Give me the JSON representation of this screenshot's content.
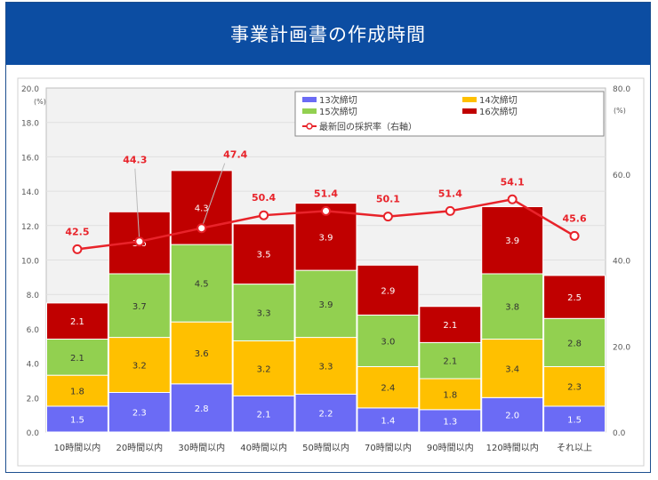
{
  "title": "事業計画書の作成時間",
  "chart_data": {
    "type": "bar",
    "stacked": true,
    "categories": [
      "10時間以内",
      "20時間以内",
      "30時間以内",
      "40時間以内",
      "50時間以内",
      "70時間以内",
      "90時間以内",
      "120時間以内",
      "それ以上"
    ],
    "series": [
      {
        "name": "13次締切",
        "color": "#6b6bf5",
        "values": [
          1.5,
          2.3,
          2.8,
          2.1,
          2.2,
          1.4,
          1.3,
          2.0,
          1.5
        ]
      },
      {
        "name": "14次締切",
        "color": "#ffc000",
        "values": [
          1.8,
          3.2,
          3.6,
          3.2,
          3.3,
          2.4,
          1.8,
          3.4,
          2.3
        ]
      },
      {
        "name": "15次締切",
        "color": "#92d050",
        "values": [
          2.1,
          3.7,
          4.5,
          3.3,
          3.9,
          3.0,
          2.1,
          3.8,
          2.8
        ]
      },
      {
        "name": "16次締切",
        "color": "#c00000",
        "values": [
          2.1,
          3.6,
          4.3,
          3.5,
          3.9,
          2.9,
          2.1,
          3.9,
          2.5
        ]
      }
    ],
    "line": {
      "name": "最新回の採択率（右軸）",
      "color": "#e8232a",
      "axis": "right",
      "values": [
        42.5,
        44.3,
        47.4,
        50.4,
        51.4,
        50.1,
        51.4,
        54.1,
        45.6
      ]
    },
    "ylim": [
      0,
      20
    ],
    "y2lim": [
      0,
      80
    ],
    "yticks": [
      "0.0",
      "2.0",
      "4.0",
      "6.0",
      "8.0",
      "10.0",
      "12.0",
      "14.0",
      "16.0",
      "18.0",
      "20.0"
    ],
    "y2ticks": [
      "0.0",
      "20.0",
      "40.0",
      "60.0",
      "80.0"
    ],
    "ylabel": "(%)",
    "y2label": "(%)",
    "grid": true,
    "legend": "top-right"
  }
}
